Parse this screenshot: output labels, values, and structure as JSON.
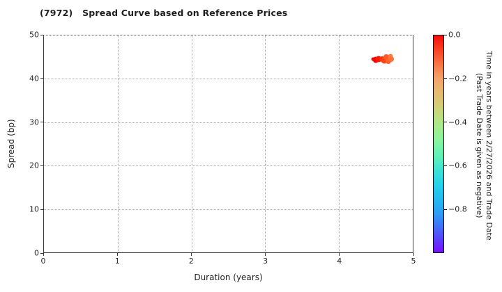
{
  "chart_data": {
    "type": "scatter",
    "title": "(7972)   Spread Curve based on Reference Prices",
    "xlabel": "Duration (years)",
    "ylabel": "Spread (bp)",
    "xlim": [
      0,
      5
    ],
    "ylim": [
      0,
      50
    ],
    "xticks": [
      0,
      1,
      2,
      3,
      4,
      5
    ],
    "xtick_labels": [
      "0",
      "1",
      "2",
      "3",
      "4",
      "5"
    ],
    "yticks": [
      0,
      10,
      20,
      30,
      40,
      50
    ],
    "ytick_labels": [
      "0",
      "10",
      "20",
      "30",
      "40",
      "50"
    ],
    "grid": "dotted",
    "legend": "none",
    "points": [
      {
        "x": 4.46,
        "y": 44.6,
        "time": -0.005,
        "color": "#e80400",
        "d": 5
      },
      {
        "x": 4.5,
        "y": 44.4,
        "time": -0.01,
        "color": "#f00800",
        "d": 9
      },
      {
        "x": 4.54,
        "y": 44.6,
        "time": -0.03,
        "color": "#fb1a02",
        "d": 9
      },
      {
        "x": 4.58,
        "y": 44.6,
        "time": -0.05,
        "color": "#ff3008",
        "d": 8
      },
      {
        "x": 4.61,
        "y": 44.3,
        "time": -0.07,
        "color": "#ff4413",
        "d": 9
      },
      {
        "x": 4.64,
        "y": 45.0,
        "time": -0.08,
        "color": "#ff5a26",
        "d": 8
      },
      {
        "x": 4.67,
        "y": 44.1,
        "time": -0.1,
        "color": "#fe5f2c",
        "d": 8
      },
      {
        "x": 4.7,
        "y": 45.2,
        "time": -0.13,
        "color": "#fd7a47",
        "d": 7
      },
      {
        "x": 4.71,
        "y": 44.6,
        "time": -0.12,
        "color": "#fc6f3c",
        "d": 8
      }
    ],
    "colorbar": {
      "label_line1": "Time in years between 2/27/2026 and Trade Date",
      "label_line2": "(Past Trade Date is given as negative)",
      "colormap": "rainbow",
      "range_top": 0.0,
      "range_bottom": -1.0,
      "ticks": [
        0.0,
        -0.2,
        -0.4,
        -0.6,
        -0.8
      ],
      "tick_labels": [
        "0.0",
        "−0.2",
        "−0.4",
        "−0.6",
        "−0.8"
      ],
      "gradient": [
        {
          "pos": 0,
          "color": "#f60b0b"
        },
        {
          "pos": 6,
          "color": "#fa3d20"
        },
        {
          "pos": 13,
          "color": "#f97343"
        },
        {
          "pos": 20,
          "color": "#f5a36c"
        },
        {
          "pos": 27,
          "color": "#e4bd72"
        },
        {
          "pos": 34,
          "color": "#cdd378"
        },
        {
          "pos": 41,
          "color": "#abe989"
        },
        {
          "pos": 48,
          "color": "#8bf59d"
        },
        {
          "pos": 55,
          "color": "#63f2b5"
        },
        {
          "pos": 62,
          "color": "#3ee3d4"
        },
        {
          "pos": 69,
          "color": "#22d3e9"
        },
        {
          "pos": 76,
          "color": "#25b9f0"
        },
        {
          "pos": 82,
          "color": "#2f9df4"
        },
        {
          "pos": 88,
          "color": "#4172f8"
        },
        {
          "pos": 94,
          "color": "#5940fb"
        },
        {
          "pos": 100,
          "color": "#7a0efe"
        }
      ]
    }
  }
}
